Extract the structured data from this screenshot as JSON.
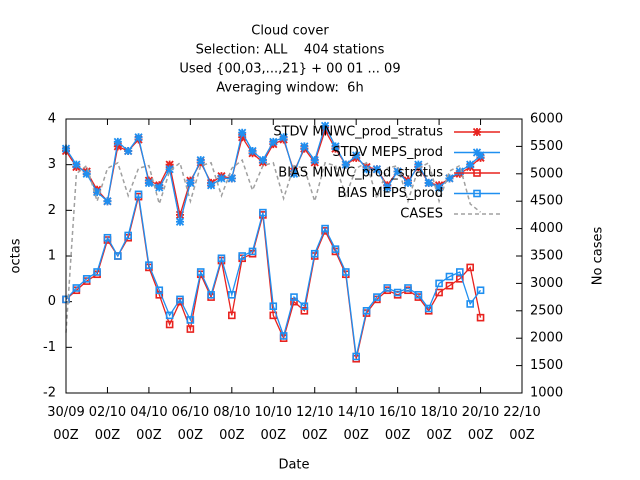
{
  "chart_data": {
    "type": "line",
    "title": "Cloud cover",
    "subtitle": [
      "Selection: ALL    404 stations",
      "Used {00,03,...,21} + 00 01 ... 09",
      "Averaging window:  6h"
    ],
    "xlabel": "Date",
    "ylabel": "octas",
    "y2label": "No cases",
    "x": [
      "30/09 00Z",
      "30/09 12Z",
      "01/10 00Z",
      "01/10 12Z",
      "02/10 00Z",
      "02/10 12Z",
      "03/10 00Z",
      "03/10 12Z",
      "04/10 00Z",
      "04/10 12Z",
      "05/10 00Z",
      "05/10 12Z",
      "06/10 00Z",
      "06/10 12Z",
      "07/10 00Z",
      "07/10 12Z",
      "08/10 00Z",
      "08/10 12Z",
      "09/10 00Z",
      "09/10 12Z",
      "10/10 00Z",
      "10/10 12Z",
      "11/10 00Z",
      "11/10 12Z",
      "12/10 00Z",
      "12/10 12Z",
      "13/10 00Z",
      "13/10 12Z",
      "14/10 00Z",
      "14/10 12Z",
      "15/10 00Z",
      "15/10 12Z",
      "16/10 00Z",
      "16/10 12Z",
      "17/10 00Z",
      "17/10 12Z",
      "18/10 00Z",
      "18/10 12Z",
      "19/10 00Z",
      "19/10 12Z",
      "20/10 00Z"
    ],
    "xlim": [
      "30/09 00Z",
      "22/10 00Z"
    ],
    "xticks": [
      "30/09 00Z",
      "02/10 00Z",
      "04/10 00Z",
      "06/10 00Z",
      "08/10 00Z",
      "10/10 00Z",
      "12/10 00Z",
      "14/10 00Z",
      "16/10 00Z",
      "18/10 00Z",
      "20/10 00Z",
      "22/10 00Z"
    ],
    "ylim": [
      -2,
      4
    ],
    "yticks": [
      -2,
      -1,
      0,
      1,
      2,
      3,
      4
    ],
    "y2lim": [
      1000,
      6000
    ],
    "y2ticks": [
      1000,
      1500,
      2000,
      2500,
      3000,
      3500,
      4000,
      4500,
      5000,
      5500,
      6000
    ],
    "legend": "top-right",
    "series": [
      {
        "name": "STDV MNWC_prod_stratus",
        "color": "#e8231f",
        "marker": "star",
        "dashed": false,
        "axis": "y",
        "values": [
          3.3,
          2.95,
          2.85,
          2.45,
          2.2,
          3.4,
          3.3,
          3.55,
          2.65,
          2.55,
          3.0,
          1.9,
          2.65,
          3.05,
          2.6,
          2.75,
          2.7,
          3.6,
          3.25,
          3.05,
          3.45,
          3.55,
          2.85,
          3.35,
          3.05,
          3.75,
          3.35,
          3.0,
          3.15,
          2.95,
          2.9,
          2.55,
          2.85,
          2.65,
          2.95,
          2.6,
          2.55,
          2.7,
          2.8,
          2.95,
          3.15
        ]
      },
      {
        "name": "STDV MEPS_prod",
        "color": "#1f8ff0",
        "marker": "star",
        "dashed": false,
        "axis": "y",
        "values": [
          3.35,
          3.0,
          2.8,
          2.4,
          2.2,
          3.5,
          3.3,
          3.6,
          2.6,
          2.5,
          2.9,
          1.75,
          2.6,
          3.1,
          2.55,
          2.7,
          2.7,
          3.7,
          3.3,
          3.1,
          3.5,
          3.6,
          2.8,
          3.4,
          3.1,
          3.85,
          3.4,
          3.0,
          3.2,
          2.9,
          2.9,
          2.5,
          2.85,
          2.6,
          3.0,
          2.6,
          2.5,
          2.7,
          2.85,
          3.0,
          3.2
        ]
      },
      {
        "name": "BIAS MNWC_prod_stratus",
        "color": "#e8231f",
        "marker": "square",
        "dashed": false,
        "axis": "y",
        "values": [
          0.05,
          0.25,
          0.45,
          0.6,
          1.35,
          1.0,
          1.4,
          2.3,
          0.75,
          0.15,
          -0.5,
          0.0,
          -0.6,
          0.6,
          0.1,
          0.9,
          -0.3,
          0.95,
          1.05,
          1.9,
          -0.3,
          -0.8,
          0.0,
          -0.2,
          1.0,
          1.55,
          1.1,
          0.6,
          -1.25,
          -0.25,
          0.05,
          0.25,
          0.15,
          0.25,
          0.1,
          -0.2,
          0.2,
          0.35,
          0.5,
          0.75,
          -0.35
        ]
      },
      {
        "name": "BIAS MEPS_prod",
        "color": "#1f8ff0",
        "marker": "square",
        "dashed": false,
        "axis": "y",
        "values": [
          0.05,
          0.3,
          0.5,
          0.65,
          1.4,
          1.0,
          1.45,
          2.35,
          0.8,
          0.25,
          -0.3,
          0.05,
          -0.4,
          0.65,
          0.15,
          0.95,
          0.15,
          1.0,
          1.1,
          1.95,
          -0.1,
          -0.75,
          0.1,
          -0.1,
          1.05,
          1.6,
          1.15,
          0.65,
          -1.2,
          -0.2,
          0.1,
          0.3,
          0.2,
          0.3,
          0.15,
          -0.15,
          0.4,
          0.55,
          0.65,
          -0.05,
          0.25
        ]
      },
      {
        "name": "CASES",
        "color": "#a0a0a0",
        "marker": "none",
        "dashed": true,
        "axis": "y2",
        "values": [
          2100,
          5000,
          5150,
          4500,
          5100,
          5200,
          4600,
          5100,
          5150,
          4450,
          5050,
          5200,
          4500,
          5150,
          5200,
          4600,
          5100,
          5250,
          4700,
          5150,
          5200,
          4550,
          5150,
          5100,
          4500,
          5200,
          5150,
          4600,
          5100,
          5200,
          4550,
          5100,
          5150,
          4500,
          5100,
          5200,
          4500,
          5050,
          5150,
          4450,
          4300
        ]
      }
    ]
  }
}
